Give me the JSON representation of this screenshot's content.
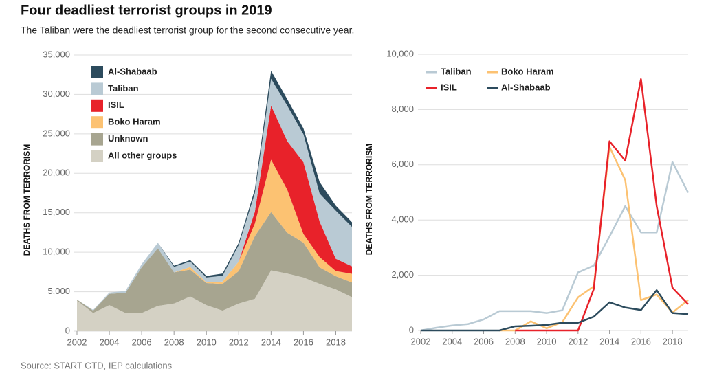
{
  "title": "Four deadliest terrorist groups in 2019",
  "subtitle": "The Taliban were the deadliest terrorist group for the second consecutive year.",
  "source": "Source: START GTD, IEP calculations",
  "chart_data": [
    {
      "type": "area",
      "stacked": true,
      "y_label": "DEATHS FROM TERRORISM",
      "legend": "upper left",
      "grid": true,
      "x": [
        2002,
        2003,
        2004,
        2005,
        2006,
        2007,
        2008,
        2009,
        2010,
        2011,
        2012,
        2013,
        2014,
        2015,
        2016,
        2017,
        2018,
        2019
      ],
      "xlim": [
        2002,
        2019
      ],
      "xticks": [
        2002,
        2004,
        2006,
        2008,
        2010,
        2012,
        2014,
        2016,
        2018
      ],
      "ylim": [
        0,
        35000
      ],
      "yticks": [
        0,
        {
          "value": 5000,
          "label": "5,000"
        },
        {
          "value": 10000,
          "label": "10,000"
        },
        {
          "value": 15000,
          "label": "15,000"
        },
        {
          "value": 20000,
          "label": "20,000"
        },
        {
          "value": 25000,
          "label": "25,000"
        },
        {
          "value": 30000,
          "label": "30,000"
        },
        {
          "value": 35000,
          "label": "35,000"
        }
      ],
      "series": [
        {
          "name": "All other groups",
          "color": "#d4d1c4",
          "values": [
            3900,
            2300,
            3300,
            2300,
            2300,
            3200,
            3500,
            4400,
            3300,
            2600,
            3500,
            4100,
            7700,
            7300,
            6800,
            6000,
            5300,
            4300
          ]
        },
        {
          "name": "Unknown",
          "color": "#a7a590",
          "values": [
            100,
            300,
            1420,
            2570,
            5800,
            7300,
            3950,
            3400,
            2790,
            3390,
            4120,
            7950,
            7380,
            5170,
            4410,
            2090,
            1670,
            1870
          ]
        },
        {
          "name": "Boko Haram",
          "color": "#fcc272",
          "values": [
            0,
            0,
            0,
            0,
            0,
            0,
            0,
            330,
            80,
            300,
            1200,
            1600,
            6650,
            5450,
            1100,
            1300,
            650,
            1100
          ]
        },
        {
          "name": "ISIL",
          "color": "#e8222a",
          "values": [
            0,
            0,
            0,
            0,
            0,
            0,
            0,
            0,
            0,
            0,
            0,
            1500,
            6850,
            6150,
            9100,
            4500,
            1550,
            950
          ]
        },
        {
          "name": "Taliban",
          "color": "#b9cad4",
          "values": [
            0,
            100,
            180,
            230,
            400,
            700,
            700,
            700,
            630,
            730,
            2100,
            2350,
            3400,
            4500,
            3550,
            3550,
            6100,
            4990
          ]
        },
        {
          "name": "Al-Shabaab",
          "color": "#2c4b5d",
          "values": [
            0,
            0,
            0,
            0,
            0,
            0,
            150,
            170,
            200,
            280,
            280,
            500,
            1020,
            830,
            740,
            1460,
            630,
            590
          ]
        }
      ]
    },
    {
      "type": "line",
      "y_label": "DEATHS FROM TERRORISM",
      "legend": "upper left",
      "grid": true,
      "x": [
        2002,
        2003,
        2004,
        2005,
        2006,
        2007,
        2008,
        2009,
        2010,
        2011,
        2012,
        2013,
        2014,
        2015,
        2016,
        2017,
        2018,
        2019
      ],
      "xlim": [
        2002,
        2019
      ],
      "xticks": [
        2002,
        2004,
        2006,
        2008,
        2010,
        2012,
        2014,
        2016,
        2018
      ],
      "ylim": [
        0,
        10000
      ],
      "yticks": [
        0,
        {
          "value": 2000,
          "label": "2,000"
        },
        {
          "value": 4000,
          "label": "4,000"
        },
        {
          "value": 6000,
          "label": "6,000"
        },
        {
          "value": 8000,
          "label": "8,000"
        },
        {
          "value": 10000,
          "label": "10,000"
        }
      ],
      "series": [
        {
          "name": "Taliban",
          "color": "#b9cad4",
          "values": [
            0,
            100,
            180,
            230,
            400,
            700,
            700,
            700,
            630,
            730,
            2100,
            2350,
            3400,
            4500,
            3550,
            3550,
            6100,
            4990
          ]
        },
        {
          "name": "Boko Haram",
          "color": "#fcc272",
          "values": [
            null,
            null,
            null,
            null,
            null,
            0,
            0,
            330,
            80,
            300,
            1200,
            1600,
            6650,
            5450,
            1100,
            1300,
            650,
            1100
          ]
        },
        {
          "name": "ISIL",
          "color": "#e8222a",
          "values": [
            null,
            null,
            null,
            null,
            null,
            null,
            0,
            0,
            0,
            0,
            0,
            1500,
            6850,
            6150,
            9100,
            4500,
            1550,
            950
          ]
        },
        {
          "name": "Al-Shabaab",
          "color": "#2c4b5d",
          "values": [
            0,
            0,
            0,
            0,
            0,
            0,
            150,
            170,
            200,
            280,
            280,
            500,
            1020,
            830,
            740,
            1460,
            630,
            590
          ]
        }
      ]
    }
  ]
}
